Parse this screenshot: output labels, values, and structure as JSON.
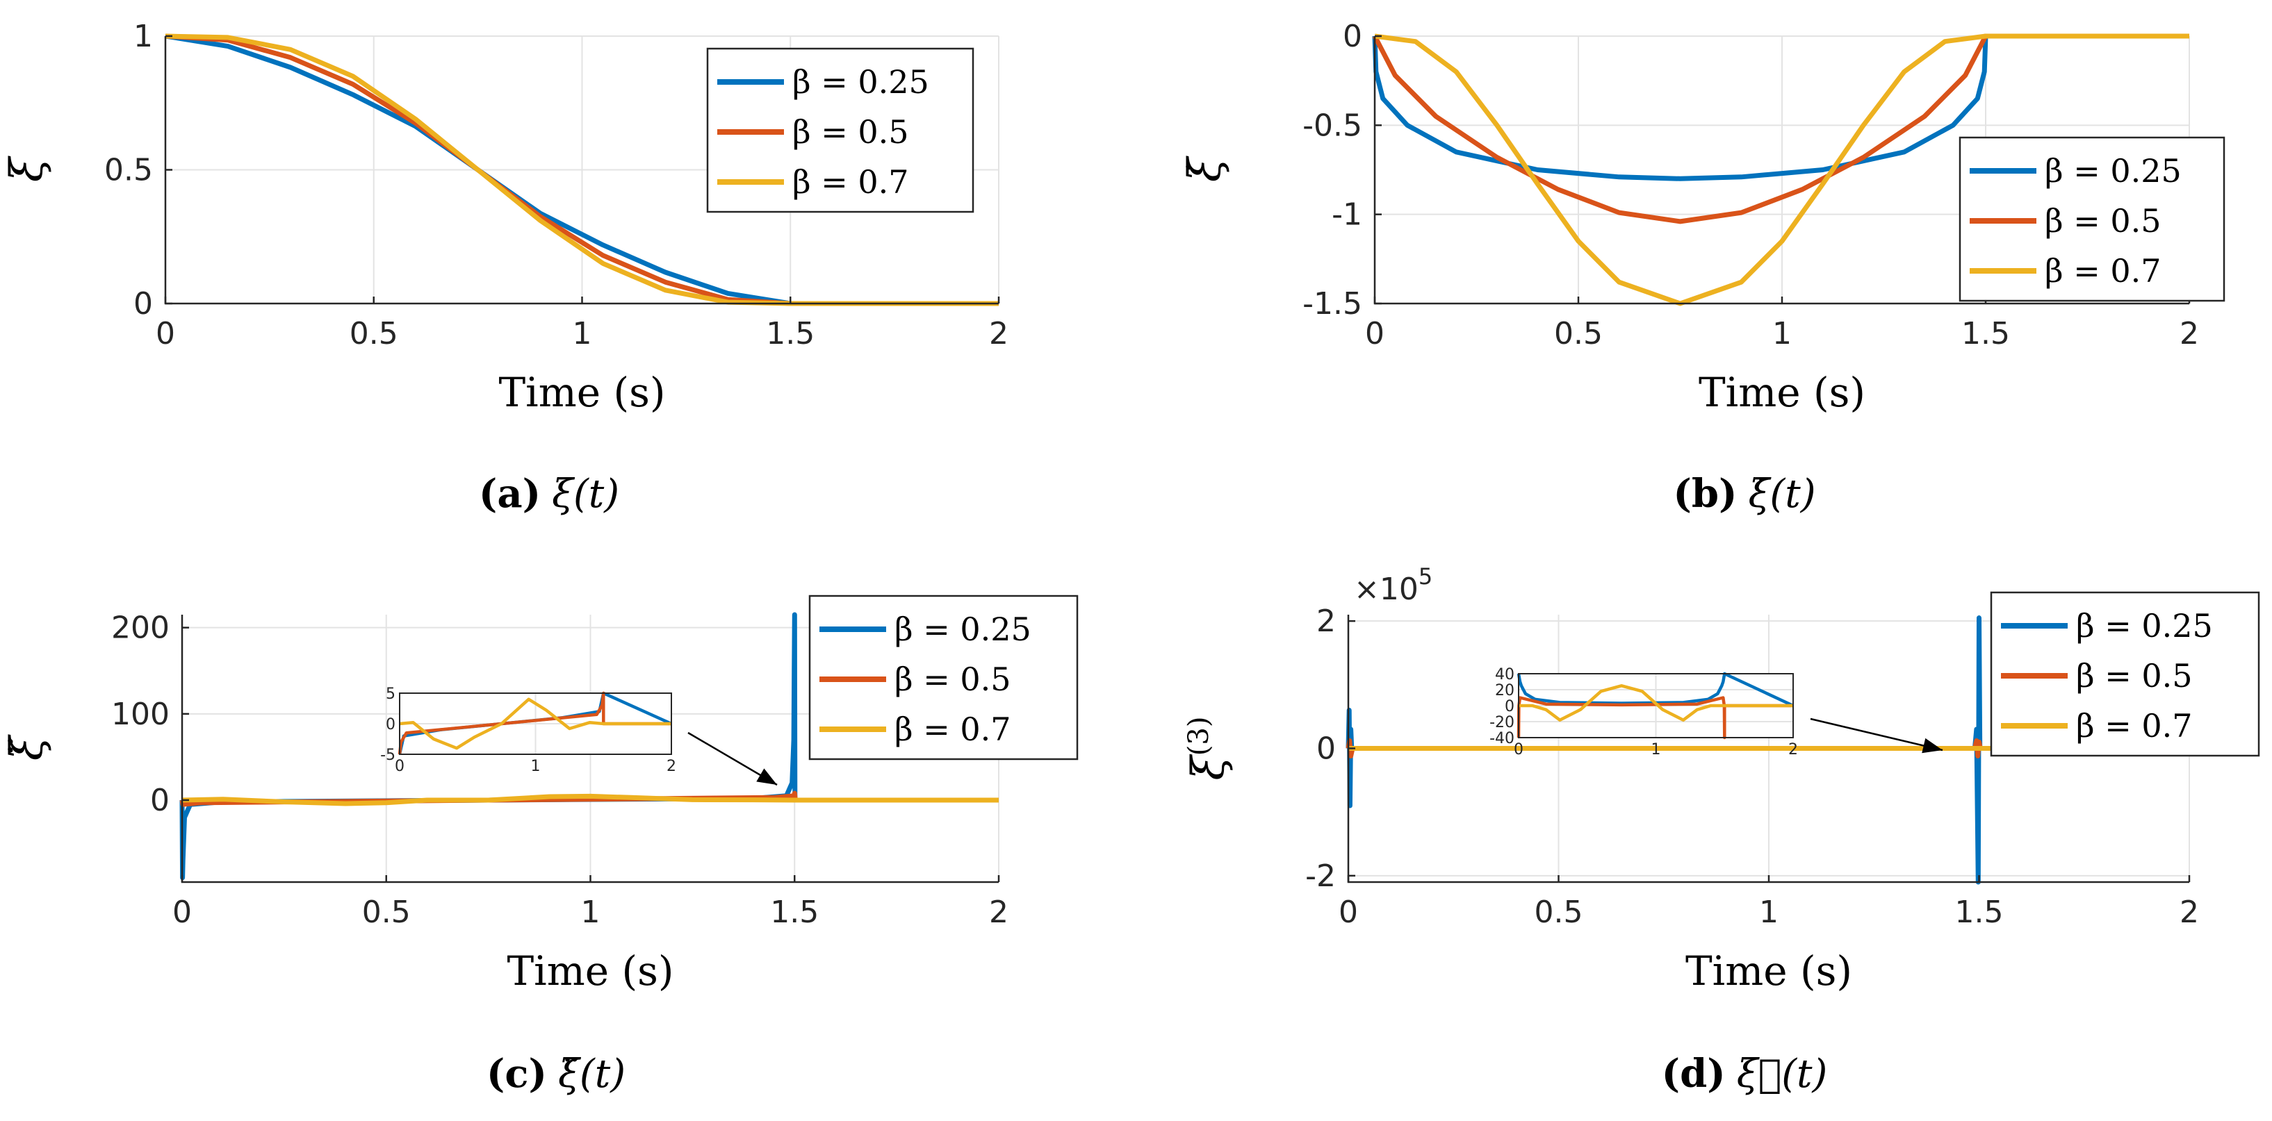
{
  "colors": {
    "beta_0_25": "#0072BD",
    "beta_0_5": "#D95319",
    "beta_0_7": "#EDB120"
  },
  "chart_data": [
    {
      "id": "a",
      "type": "line",
      "caption_letter": "(a)",
      "caption_expr": "ξ(t)",
      "xlabel": "Time (s)",
      "ylabel": "ξ",
      "xlim": [
        0,
        2
      ],
      "ylim": [
        0,
        1
      ],
      "xticks": [
        "0",
        "0.5",
        "1",
        "1.5",
        "2"
      ],
      "yticks": [
        "0",
        "0.5",
        "1"
      ],
      "legend": [
        "β = 0.25",
        "β = 0.5",
        "β = 0.7"
      ],
      "legend_location": "top-right",
      "series": [
        {
          "name": "β = 0.25",
          "x": [
            0,
            0.15,
            0.3,
            0.45,
            0.6,
            0.75,
            0.9,
            1.05,
            1.2,
            1.35,
            1.5,
            2
          ],
          "values": [
            1,
            0.962,
            0.883,
            0.781,
            0.663,
            0.5,
            0.337,
            0.219,
            0.117,
            0.038,
            0,
            0
          ]
        },
        {
          "name": "β = 0.5",
          "x": [
            0,
            0.15,
            0.3,
            0.45,
            0.6,
            0.75,
            0.9,
            1.05,
            1.2,
            1.35,
            1.5,
            2
          ],
          "values": [
            1,
            0.985,
            0.92,
            0.82,
            0.675,
            0.5,
            0.325,
            0.18,
            0.08,
            0.015,
            0,
            0
          ]
        },
        {
          "name": "β = 0.7",
          "x": [
            0,
            0.15,
            0.3,
            0.45,
            0.6,
            0.75,
            0.9,
            1.05,
            1.2,
            1.35,
            1.5,
            2
          ],
          "values": [
            1,
            0.995,
            0.95,
            0.85,
            0.69,
            0.5,
            0.31,
            0.15,
            0.05,
            0.005,
            0,
            0
          ]
        }
      ]
    },
    {
      "id": "b",
      "type": "line",
      "caption_letter": "(b)",
      "caption_expr": "ξ̇(t)",
      "xlabel": "Time (s)",
      "ylabel": "ξ̇",
      "xlim": [
        0,
        2
      ],
      "ylim": [
        -1.5,
        0
      ],
      "xticks": [
        "0",
        "0.5",
        "1",
        "1.5",
        "2"
      ],
      "yticks": [
        "-1.5",
        "-1",
        "-0.5",
        "0"
      ],
      "legend": [
        "β = 0.25",
        "β = 0.5",
        "β = 0.7"
      ],
      "legend_location": "right",
      "series": [
        {
          "name": "β = 0.25",
          "x": [
            0,
            0.003,
            0.02,
            0.08,
            0.2,
            0.4,
            0.6,
            0.75,
            0.9,
            1.1,
            1.3,
            1.42,
            1.48,
            1.497,
            1.5,
            2
          ],
          "values": [
            0,
            -0.2,
            -0.35,
            -0.5,
            -0.65,
            -0.75,
            -0.79,
            -0.8,
            -0.79,
            -0.75,
            -0.65,
            -0.5,
            -0.35,
            -0.2,
            0,
            0
          ]
        },
        {
          "name": "β = 0.5",
          "x": [
            0,
            0.05,
            0.15,
            0.3,
            0.45,
            0.6,
            0.75,
            0.9,
            1.05,
            1.2,
            1.35,
            1.45,
            1.5,
            2
          ],
          "values": [
            0,
            -0.22,
            -0.45,
            -0.68,
            -0.86,
            -0.99,
            -1.04,
            -0.99,
            -0.86,
            -0.68,
            -0.45,
            -0.22,
            0,
            0
          ]
        },
        {
          "name": "β = 0.7",
          "x": [
            0,
            0.1,
            0.2,
            0.3,
            0.4,
            0.5,
            0.6,
            0.75,
            0.9,
            1.0,
            1.1,
            1.2,
            1.3,
            1.4,
            1.5,
            2
          ],
          "values": [
            0,
            -0.03,
            -0.2,
            -0.5,
            -0.83,
            -1.15,
            -1.38,
            -1.5,
            -1.38,
            -1.15,
            -0.83,
            -0.5,
            -0.2,
            -0.03,
            0,
            0
          ]
        }
      ]
    },
    {
      "id": "c",
      "type": "line",
      "caption_letter": "(c)",
      "caption_expr": "ξ̈(t)",
      "xlabel": "Time (s)",
      "ylabel": "ξ̈",
      "xlim": [
        0,
        2
      ],
      "ylim": [
        -95,
        215
      ],
      "xticks": [
        "0",
        "0.5",
        "1",
        "1.5",
        "2"
      ],
      "yticks": [
        "0",
        "100",
        "200"
      ],
      "legend": [
        "β = 0.25",
        "β = 0.5",
        "β = 0.7"
      ],
      "legend_location": "top-right",
      "series": [
        {
          "name": "β = 0.25",
          "x": [
            0,
            0.001,
            0.002,
            0.006,
            0.02,
            0.1,
            0.75,
            1.4,
            1.48,
            1.494,
            1.498,
            1.499,
            1.5,
            1.501,
            2
          ],
          "values": [
            0,
            -90,
            -70,
            -20,
            -5,
            -2,
            0,
            2,
            5,
            20,
            70,
            150,
            215,
            0,
            0
          ]
        },
        {
          "name": "β = 0.5",
          "x": [
            0,
            0.002,
            0.05,
            0.75,
            1.45,
            1.498,
            1.5,
            1.502,
            2
          ],
          "values": [
            0,
            -5,
            -3,
            0,
            3,
            5,
            8,
            0,
            0
          ]
        },
        {
          "name": "β = 0.7",
          "x": [
            0,
            0.1,
            0.25,
            0.4,
            0.5,
            0.6,
            0.75,
            0.9,
            1.0,
            1.1,
            1.25,
            1.4,
            1.5,
            2
          ],
          "values": [
            0,
            1,
            -2,
            -4,
            -3,
            0,
            0,
            4,
            4.5,
            3,
            0.5,
            0.3,
            0,
            0
          ]
        }
      ],
      "inset": {
        "xlim": [
          0,
          2
        ],
        "ylim": [
          -5,
          5
        ],
        "xticks": [
          "0",
          "1",
          "2"
        ],
        "yticks": [
          "-5",
          "0",
          "5"
        ],
        "series": [
          {
            "name": "β = 0.25",
            "x": [
              0,
              0.03,
              0.3,
              0.75,
              1.2,
              1.47,
              1.5,
              2
            ],
            "values": [
              -5,
              -2,
              -1,
              0,
              1,
              2,
              5,
              0
            ]
          },
          {
            "name": "β = 0.5",
            "x": [
              0,
              0.01,
              0.05,
              0.75,
              1.45,
              1.49,
              1.5,
              1.5,
              2
            ],
            "values": [
              -5,
              -3,
              -1.5,
              0,
              1.5,
              3,
              5,
              0,
              0
            ]
          },
          {
            "name": "β = 0.7",
            "x": [
              0,
              0.1,
              0.25,
              0.42,
              0.55,
              0.75,
              0.95,
              1.08,
              1.25,
              1.4,
              1.5,
              2
            ],
            "values": [
              0,
              0.2,
              -2.5,
              -4,
              -2.2,
              0,
              4,
              2.2,
              -0.8,
              0.2,
              0,
              0
            ]
          }
        ]
      }
    },
    {
      "id": "d",
      "type": "line",
      "caption_letter": "(d)",
      "caption_expr": "ξ⃛(t)",
      "xlabel": "Time (s)",
      "ylabel": "ξ(3)",
      "scale_exponent": "×10",
      "scale_power": "5",
      "xlim": [
        0,
        2
      ],
      "ylim": [
        -2.1,
        2.1
      ],
      "xticks": [
        "0",
        "0.5",
        "1",
        "1.5",
        "2"
      ],
      "yticks": [
        "-2",
        "0",
        "2"
      ],
      "legend": [
        "β = 0.25",
        "β = 0.5",
        "β = 0.7"
      ],
      "legend_location": "top-right",
      "series": [
        {
          "name": "β = 0.25",
          "x": [
            0,
            0.002,
            0.004,
            0.006,
            0.008,
            0.02,
            1.49,
            1.494,
            1.496,
            1.498,
            1.5,
            1.502,
            2
          ],
          "values": [
            0,
            0.6,
            -0.9,
            0.3,
            0,
            0,
            0,
            0.3,
            -0.9,
            -2.1,
            2.05,
            0,
            0
          ]
        },
        {
          "name": "β = 0.5",
          "x": [
            0,
            0.003,
            0.006,
            0.01,
            1.49,
            1.494,
            1.497,
            1.5,
            1.503,
            2
          ],
          "values": [
            0,
            0.12,
            -0.12,
            0,
            0,
            0.12,
            -0.12,
            0.1,
            0,
            0
          ]
        },
        {
          "name": "β = 0.7",
          "x": [
            0,
            0.5,
            1.0,
            1.5,
            2
          ],
          "values": [
            0,
            0,
            0,
            0,
            0
          ]
        }
      ],
      "inset": {
        "xlim": [
          0,
          2
        ],
        "ylim": [
          -40,
          40
        ],
        "xticks": [
          "0",
          "1",
          "2"
        ],
        "yticks": [
          "-40",
          "-20",
          "0",
          "20",
          "40"
        ],
        "series": [
          {
            "name": "β = 0.25",
            "x": [
              0,
              0.01,
              0.02,
              0.05,
              0.12,
              0.3,
              0.75,
              1.2,
              1.38,
              1.45,
              1.48,
              1.49,
              1.5,
              2
            ],
            "values": [
              40,
              30,
              25,
              15,
              8,
              4,
              3,
              4,
              8,
              15,
              25,
              30,
              40,
              0
            ]
          },
          {
            "name": "β = 0.5",
            "x": [
              0,
              0.002,
              0.01,
              0.2,
              0.75,
              1.3,
              1.49,
              1.498,
              1.5,
              1.5,
              2
            ],
            "values": [
              -40,
              0,
              10,
              2,
              1,
              2,
              10,
              0,
              -40,
              0,
              0
            ]
          },
          {
            "name": "β = 0.7",
            "x": [
              0,
              0.1,
              0.2,
              0.3,
              0.45,
              0.6,
              0.75,
              0.9,
              1.05,
              1.2,
              1.3,
              1.4,
              1.5,
              2
            ],
            "values": [
              0,
              0,
              -5,
              -18,
              -5,
              18,
              25,
              18,
              -5,
              -18,
              -5,
              0,
              0,
              0
            ]
          }
        ]
      }
    }
  ]
}
